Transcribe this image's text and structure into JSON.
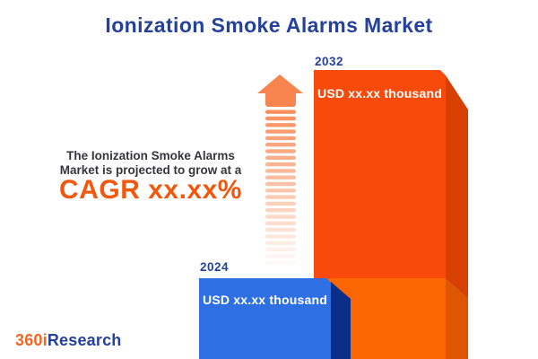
{
  "title": "Ionization Smoke Alarms Market",
  "insight": {
    "line1": "The Ionization Smoke Alarms",
    "line2": "Market is projected to grow at a",
    "cagr": "CAGR xx.xx%"
  },
  "bars": [
    {
      "year": "2024",
      "value_label": "USD xx.xx thousand"
    },
    {
      "year": "2032",
      "value_label": "USD xx.xx thousand"
    }
  ],
  "logo": {
    "prefix": "360i",
    "suffix": "Research"
  },
  "colors": {
    "title_blue": "#24419C",
    "insight_text": "#35353d",
    "cagr_orange": "#F2570E",
    "bar_2024_front": "#2F6FE4",
    "bar_2024_side": "#0B2E88",
    "bar_2032_front_upper": "#F84A0A",
    "bar_2032_front_lower": "#FB6502",
    "bar_2032_side_upper": "#D64002",
    "bar_2032_side_lower": "#DE5502",
    "arrow_orange": "#F8854F",
    "logo_orange": "#F26522",
    "logo_blue": "#24419C"
  },
  "chart_data": {
    "type": "bar",
    "categories": [
      "2024",
      "2032"
    ],
    "values": [
      "USD xx.xx thousand",
      "USD xx.xx thousand"
    ],
    "title": "Ionization Smoke Alarms Market",
    "annotation": "The Ionization Smoke Alarms Market is projected to grow at a CAGR xx.xx%",
    "ylabel": "",
    "xlabel": "",
    "legend": false,
    "grid": false
  }
}
